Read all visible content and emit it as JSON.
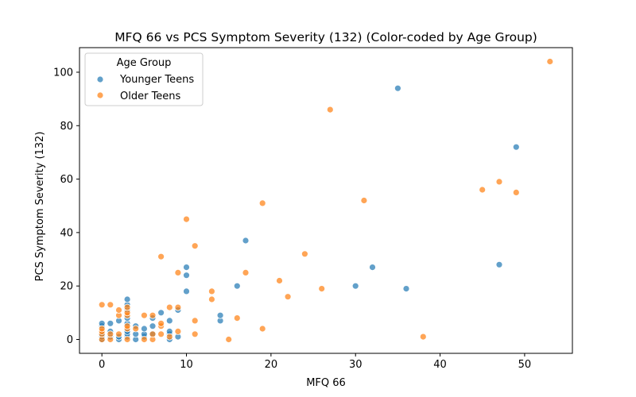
{
  "chart_data": {
    "type": "scatter",
    "title": "MFQ 66 vs PCS Symptom Severity (132) (Color-coded by Age Group)",
    "xlabel": "MFQ 66",
    "ylabel": "PCS Symptom Severity (132)",
    "xlim": [
      -2.65,
      55.65
    ],
    "ylim": [
      -5.2,
      109.2
    ],
    "xticks": [
      0,
      10,
      20,
      30,
      40,
      50
    ],
    "yticks": [
      0,
      20,
      40,
      60,
      80,
      100
    ],
    "grid": false,
    "legend": {
      "title": "Age Group",
      "placement": "top-left"
    },
    "series": [
      {
        "name": "Younger Teens",
        "color": "#1f77b4",
        "points": [
          [
            0,
            0
          ],
          [
            0,
            1
          ],
          [
            0,
            2
          ],
          [
            0,
            5
          ],
          [
            0,
            6
          ],
          [
            1,
            1
          ],
          [
            1,
            3
          ],
          [
            1,
            6
          ],
          [
            2,
            0
          ],
          [
            2,
            1
          ],
          [
            2,
            7
          ],
          [
            3,
            1
          ],
          [
            3,
            2
          ],
          [
            3,
            3
          ],
          [
            3,
            6
          ],
          [
            3,
            8
          ],
          [
            3,
            11
          ],
          [
            3,
            13
          ],
          [
            3,
            15
          ],
          [
            4,
            0
          ],
          [
            4,
            2
          ],
          [
            4,
            5
          ],
          [
            5,
            1
          ],
          [
            5,
            2
          ],
          [
            5,
            4
          ],
          [
            6,
            2
          ],
          [
            6,
            5
          ],
          [
            6,
            8
          ],
          [
            7,
            10
          ],
          [
            8,
            0
          ],
          [
            8,
            2
          ],
          [
            8,
            3
          ],
          [
            8,
            7
          ],
          [
            9,
            1
          ],
          [
            9,
            11
          ],
          [
            10,
            18
          ],
          [
            10,
            24
          ],
          [
            10,
            27
          ],
          [
            14,
            7
          ],
          [
            14,
            9
          ],
          [
            16,
            20
          ],
          [
            17,
            37
          ],
          [
            30,
            20
          ],
          [
            32,
            27
          ],
          [
            35,
            94
          ],
          [
            36,
            19
          ],
          [
            47,
            28
          ],
          [
            49,
            72
          ]
        ]
      },
      {
        "name": "Older Teens",
        "color": "#ff7f0e",
        "points": [
          [
            0,
            0
          ],
          [
            0,
            2
          ],
          [
            0,
            3
          ],
          [
            0,
            4
          ],
          [
            0,
            13
          ],
          [
            1,
            0
          ],
          [
            1,
            2
          ],
          [
            1,
            13
          ],
          [
            2,
            2
          ],
          [
            2,
            9
          ],
          [
            2,
            11
          ],
          [
            3,
            0
          ],
          [
            3,
            4
          ],
          [
            3,
            5
          ],
          [
            3,
            9
          ],
          [
            3,
            10
          ],
          [
            3,
            12
          ],
          [
            4,
            4
          ],
          [
            5,
            0
          ],
          [
            5,
            9
          ],
          [
            6,
            0
          ],
          [
            6,
            2
          ],
          [
            6,
            9
          ],
          [
            7,
            2
          ],
          [
            7,
            5
          ],
          [
            7,
            6
          ],
          [
            7,
            31
          ],
          [
            8,
            1
          ],
          [
            8,
            12
          ],
          [
            9,
            3
          ],
          [
            9,
            12
          ],
          [
            9,
            25
          ],
          [
            10,
            45
          ],
          [
            11,
            2
          ],
          [
            11,
            7
          ],
          [
            11,
            35
          ],
          [
            13,
            15
          ],
          [
            13,
            18
          ],
          [
            15,
            0
          ],
          [
            16,
            8
          ],
          [
            17,
            25
          ],
          [
            19,
            4
          ],
          [
            19,
            51
          ],
          [
            21,
            22
          ],
          [
            22,
            16
          ],
          [
            24,
            32
          ],
          [
            26,
            19
          ],
          [
            27,
            86
          ],
          [
            31,
            52
          ],
          [
            38,
            1
          ],
          [
            45,
            56
          ],
          [
            47,
            59
          ],
          [
            49,
            55
          ],
          [
            53,
            104
          ]
        ]
      }
    ]
  }
}
